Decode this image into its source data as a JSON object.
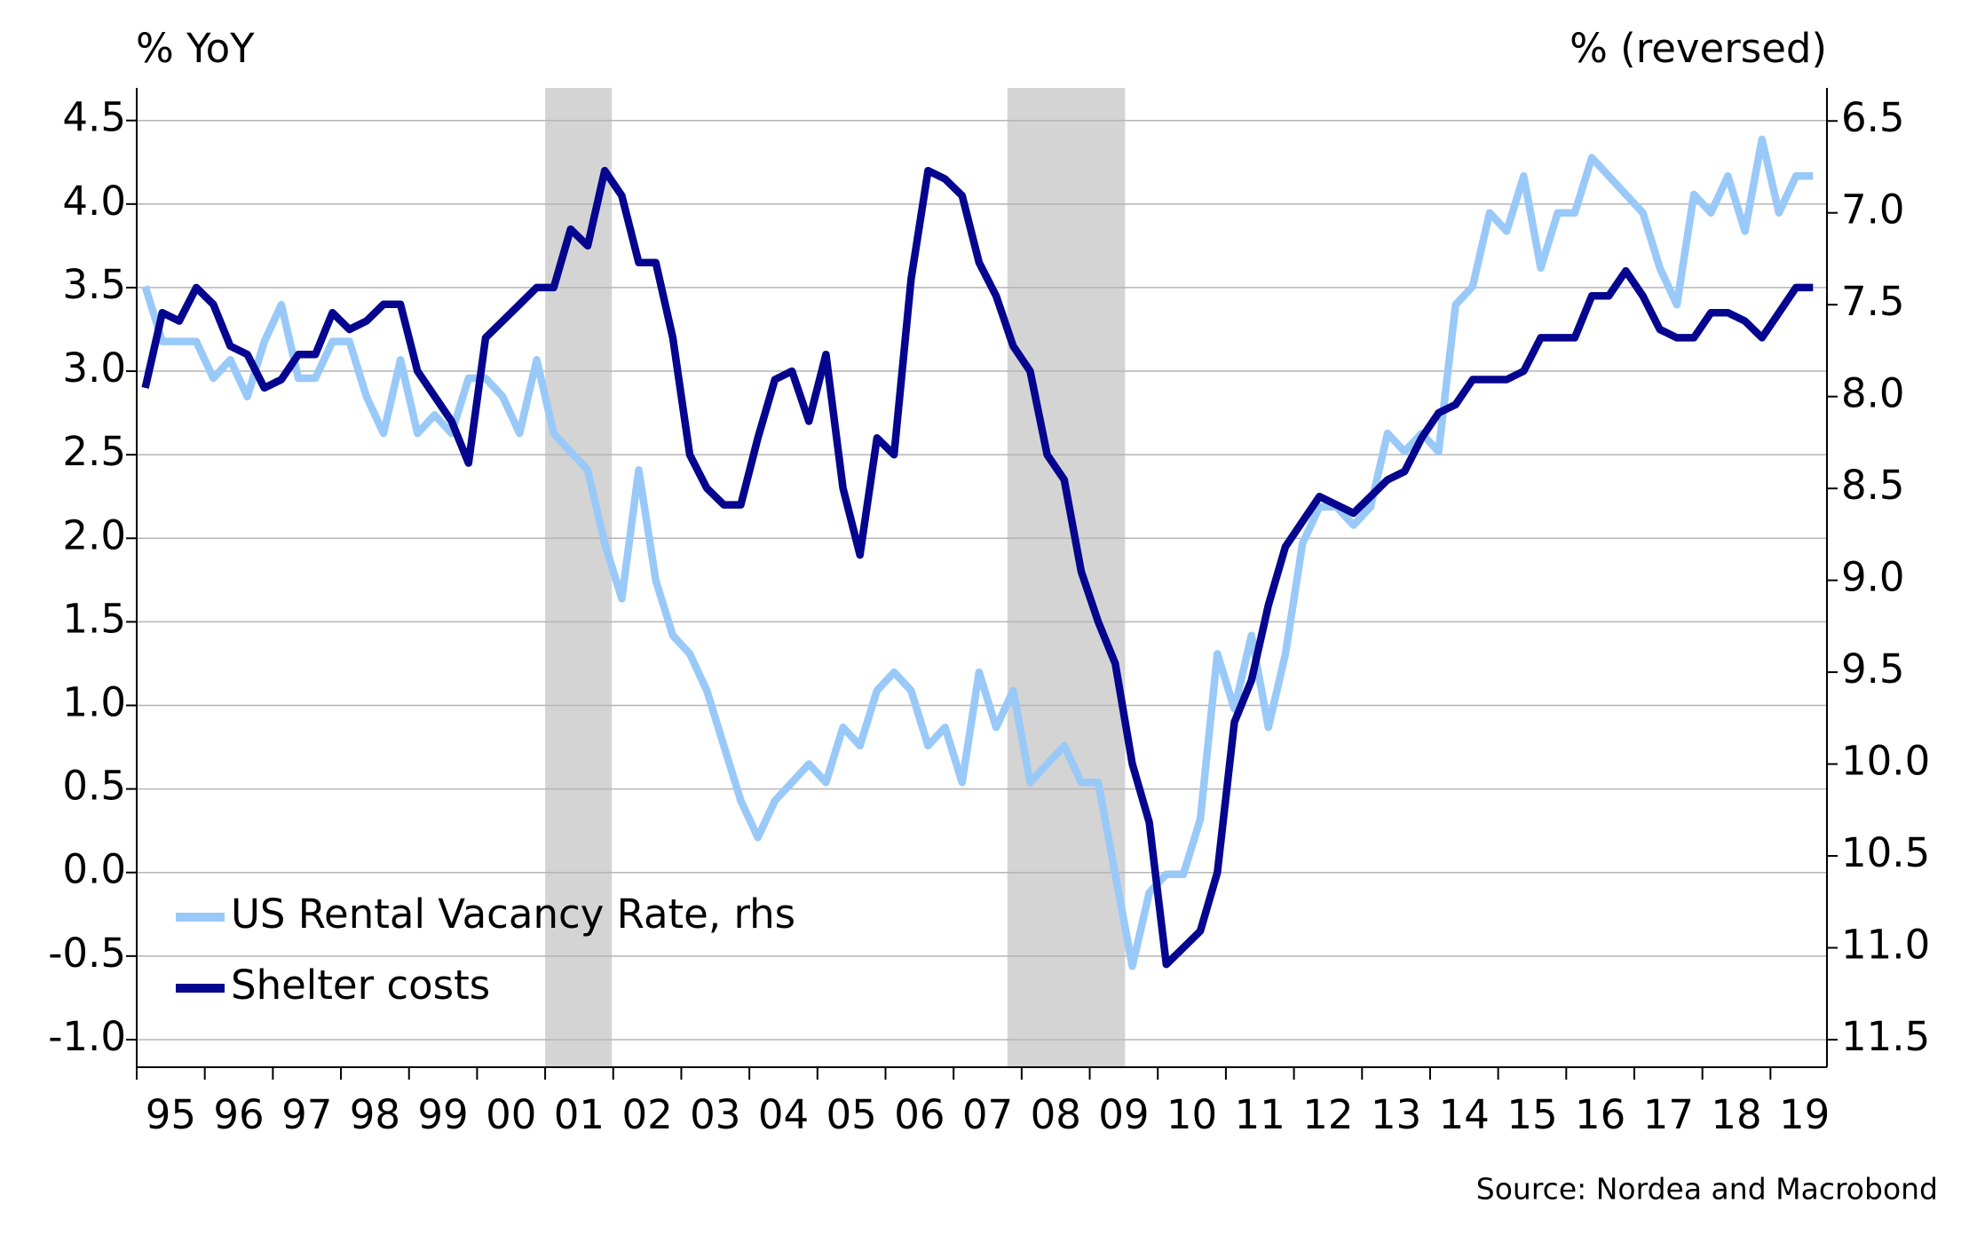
{
  "chart_data": {
    "type": "line",
    "y_label": "% YoY",
    "y2_label": "% (reversed)",
    "source": "Source: Nordea and Macrobond",
    "x": [
      1995.125,
      1995.375,
      1995.625,
      1995.875,
      1996.125,
      1996.375,
      1996.625,
      1996.875,
      1997.125,
      1997.375,
      1997.625,
      1997.875,
      1998.125,
      1998.375,
      1998.625,
      1998.875,
      1999.125,
      1999.375,
      1999.625,
      1999.875,
      2000.125,
      2000.375,
      2000.625,
      2000.875,
      2001.125,
      2001.375,
      2001.625,
      2001.875,
      2002.125,
      2002.375,
      2002.625,
      2002.875,
      2003.125,
      2003.375,
      2003.625,
      2003.875,
      2004.125,
      2004.375,
      2004.625,
      2004.875,
      2005.125,
      2005.375,
      2005.625,
      2005.875,
      2006.125,
      2006.375,
      2006.625,
      2006.875,
      2007.125,
      2007.375,
      2007.625,
      2007.875,
      2008.125,
      2008.375,
      2008.625,
      2008.875,
      2009.125,
      2009.375,
      2009.625,
      2009.875,
      2010.125,
      2010.375,
      2010.625,
      2010.875,
      2011.125,
      2011.375,
      2011.625,
      2011.875,
      2012.125,
      2012.375,
      2012.625,
      2012.875,
      2013.125,
      2013.375,
      2013.625,
      2013.875,
      2014.125,
      2014.375,
      2014.625,
      2014.875,
      2015.125,
      2015.375,
      2015.625,
      2015.875,
      2016.125,
      2016.375,
      2016.625,
      2016.875,
      2017.125,
      2017.375,
      2017.625,
      2017.875,
      2018.125,
      2018.375,
      2018.625,
      2018.875,
      2019.125,
      2019.375,
      2019.625
    ],
    "series": [
      {
        "name": "US Rental Vacancy Rate, rhs",
        "color": "#99c9f8",
        "axis": "y2",
        "values": [
          7.4,
          7.7,
          7.7,
          7.7,
          7.9,
          7.8,
          8.0,
          7.7,
          7.5,
          7.9,
          7.9,
          7.7,
          7.7,
          8.0,
          8.2,
          7.8,
          8.2,
          8.1,
          8.2,
          7.9,
          7.9,
          8.0,
          8.2,
          7.8,
          8.2,
          8.3,
          8.4,
          8.8,
          9.1,
          8.4,
          9.0,
          9.3,
          9.4,
          9.6,
          9.9,
          10.2,
          10.4,
          10.2,
          10.1,
          10.0,
          10.1,
          9.8,
          9.9,
          9.6,
          9.5,
          9.6,
          9.9,
          9.8,
          10.1,
          9.5,
          9.8,
          9.6,
          10.1,
          10.0,
          9.9,
          10.1,
          10.1,
          10.6,
          11.1,
          10.7,
          10.6,
          10.6,
          10.3,
          9.4,
          9.7,
          9.3,
          9.8,
          9.4,
          8.8,
          8.6,
          8.6,
          8.7,
          8.6,
          8.2,
          8.3,
          8.2,
          8.3,
          7.5,
          7.4,
          7.0,
          7.1,
          6.8,
          7.3,
          7.0,
          7.0,
          6.7,
          6.8,
          6.9,
          7.0,
          7.3,
          7.5,
          6.9,
          7.0,
          6.8,
          7.1,
          6.6,
          7.0,
          6.8,
          6.8
        ]
      },
      {
        "name": "Shelter costs",
        "color": "#05058f",
        "values": [
          2.9,
          3.35,
          3.3,
          3.5,
          3.4,
          3.15,
          3.1,
          2.9,
          2.95,
          3.1,
          3.1,
          3.35,
          3.25,
          3.3,
          3.4,
          3.4,
          3.0,
          2.85,
          2.7,
          2.45,
          3.2,
          3.3,
          3.4,
          3.5,
          3.5,
          3.85,
          3.75,
          4.2,
          4.05,
          3.65,
          3.65,
          3.2,
          2.5,
          2.3,
          2.2,
          2.2,
          2.6,
          2.95,
          3.0,
          2.7,
          3.1,
          2.3,
          1.9,
          2.6,
          2.5,
          3.55,
          4.2,
          4.15,
          4.05,
          3.65,
          3.45,
          3.15,
          3.0,
          2.5,
          2.35,
          1.8,
          1.5,
          1.25,
          0.65,
          0.3,
          -0.55,
          -0.45,
          -0.35,
          0.0,
          0.9,
          1.15,
          1.6,
          1.95,
          2.1,
          2.25,
          2.2,
          2.15,
          2.25,
          2.35,
          2.4,
          2.6,
          2.75,
          2.8,
          2.95,
          2.95,
          2.95,
          3.0,
          3.2,
          3.2,
          3.2,
          3.45,
          3.45,
          3.6,
          3.45,
          3.25,
          3.2,
          3.2,
          3.35,
          3.35,
          3.3,
          3.2,
          3.35,
          3.5,
          3.5
        ]
      }
    ],
    "shaded_regions": [
      [
        2001.0,
        2001.98
      ],
      [
        2007.79,
        2009.52
      ]
    ],
    "shade_color": "#d4d4d4",
    "xlim": [
      1995.0,
      2019.83
    ],
    "xticks": [
      {
        "value": 1995,
        "label": "95"
      },
      {
        "value": 1996,
        "label": "96"
      },
      {
        "value": 1997,
        "label": "97"
      },
      {
        "value": 1998,
        "label": "98"
      },
      {
        "value": 1999,
        "label": "99"
      },
      {
        "value": 2000,
        "label": "00"
      },
      {
        "value": 2001,
        "label": "01"
      },
      {
        "value": 2002,
        "label": "02"
      },
      {
        "value": 2003,
        "label": "03"
      },
      {
        "value": 2004,
        "label": "04"
      },
      {
        "value": 2005,
        "label": "05"
      },
      {
        "value": 2006,
        "label": "06"
      },
      {
        "value": 2007,
        "label": "07"
      },
      {
        "value": 2008,
        "label": "08"
      },
      {
        "value": 2009,
        "label": "09"
      },
      {
        "value": 2010,
        "label": "10"
      },
      {
        "value": 2011,
        "label": "11"
      },
      {
        "value": 2012,
        "label": "12"
      },
      {
        "value": 2013,
        "label": "13"
      },
      {
        "value": 2014,
        "label": "14"
      },
      {
        "value": 2015,
        "label": "15"
      },
      {
        "value": 2016,
        "label": "16"
      },
      {
        "value": 2017,
        "label": "17"
      },
      {
        "value": 2018,
        "label": "18"
      },
      {
        "value": 2019,
        "label": "19"
      }
    ],
    "ylim": [
      -1.165,
      4.695
    ],
    "yticks": [
      {
        "value": 4.5,
        "label": "4.5"
      },
      {
        "value": 4,
        "label": "4.0"
      },
      {
        "value": 3.5,
        "label": "3.5"
      },
      {
        "value": 3,
        "label": "3.0"
      },
      {
        "value": 2.5,
        "label": "2.5"
      },
      {
        "value": 2,
        "label": "2.0"
      },
      {
        "value": 1.5,
        "label": "1.5"
      },
      {
        "value": 1,
        "label": "1.0"
      },
      {
        "value": 0.5,
        "label": "0.5"
      },
      {
        "value": 0,
        "label": "0.0"
      },
      {
        "value": -0.5,
        "label": "-0.5"
      },
      {
        "value": -1,
        "label": "-1.0"
      }
    ],
    "y2lim": [
      11.65,
      6.32
    ],
    "y2ticks": [
      6.5,
      {
        "value": 7,
        "label": "7.0"
      },
      7.5,
      {
        "value": 8,
        "label": "8.0"
      },
      8.5,
      {
        "value": 9,
        "label": "9.0"
      },
      9.5,
      {
        "value": 10,
        "label": "10.0"
      },
      10.5,
      {
        "value": 11,
        "label": "11.0"
      },
      11.5
    ],
    "grid": true,
    "legend": "lower left"
  }
}
